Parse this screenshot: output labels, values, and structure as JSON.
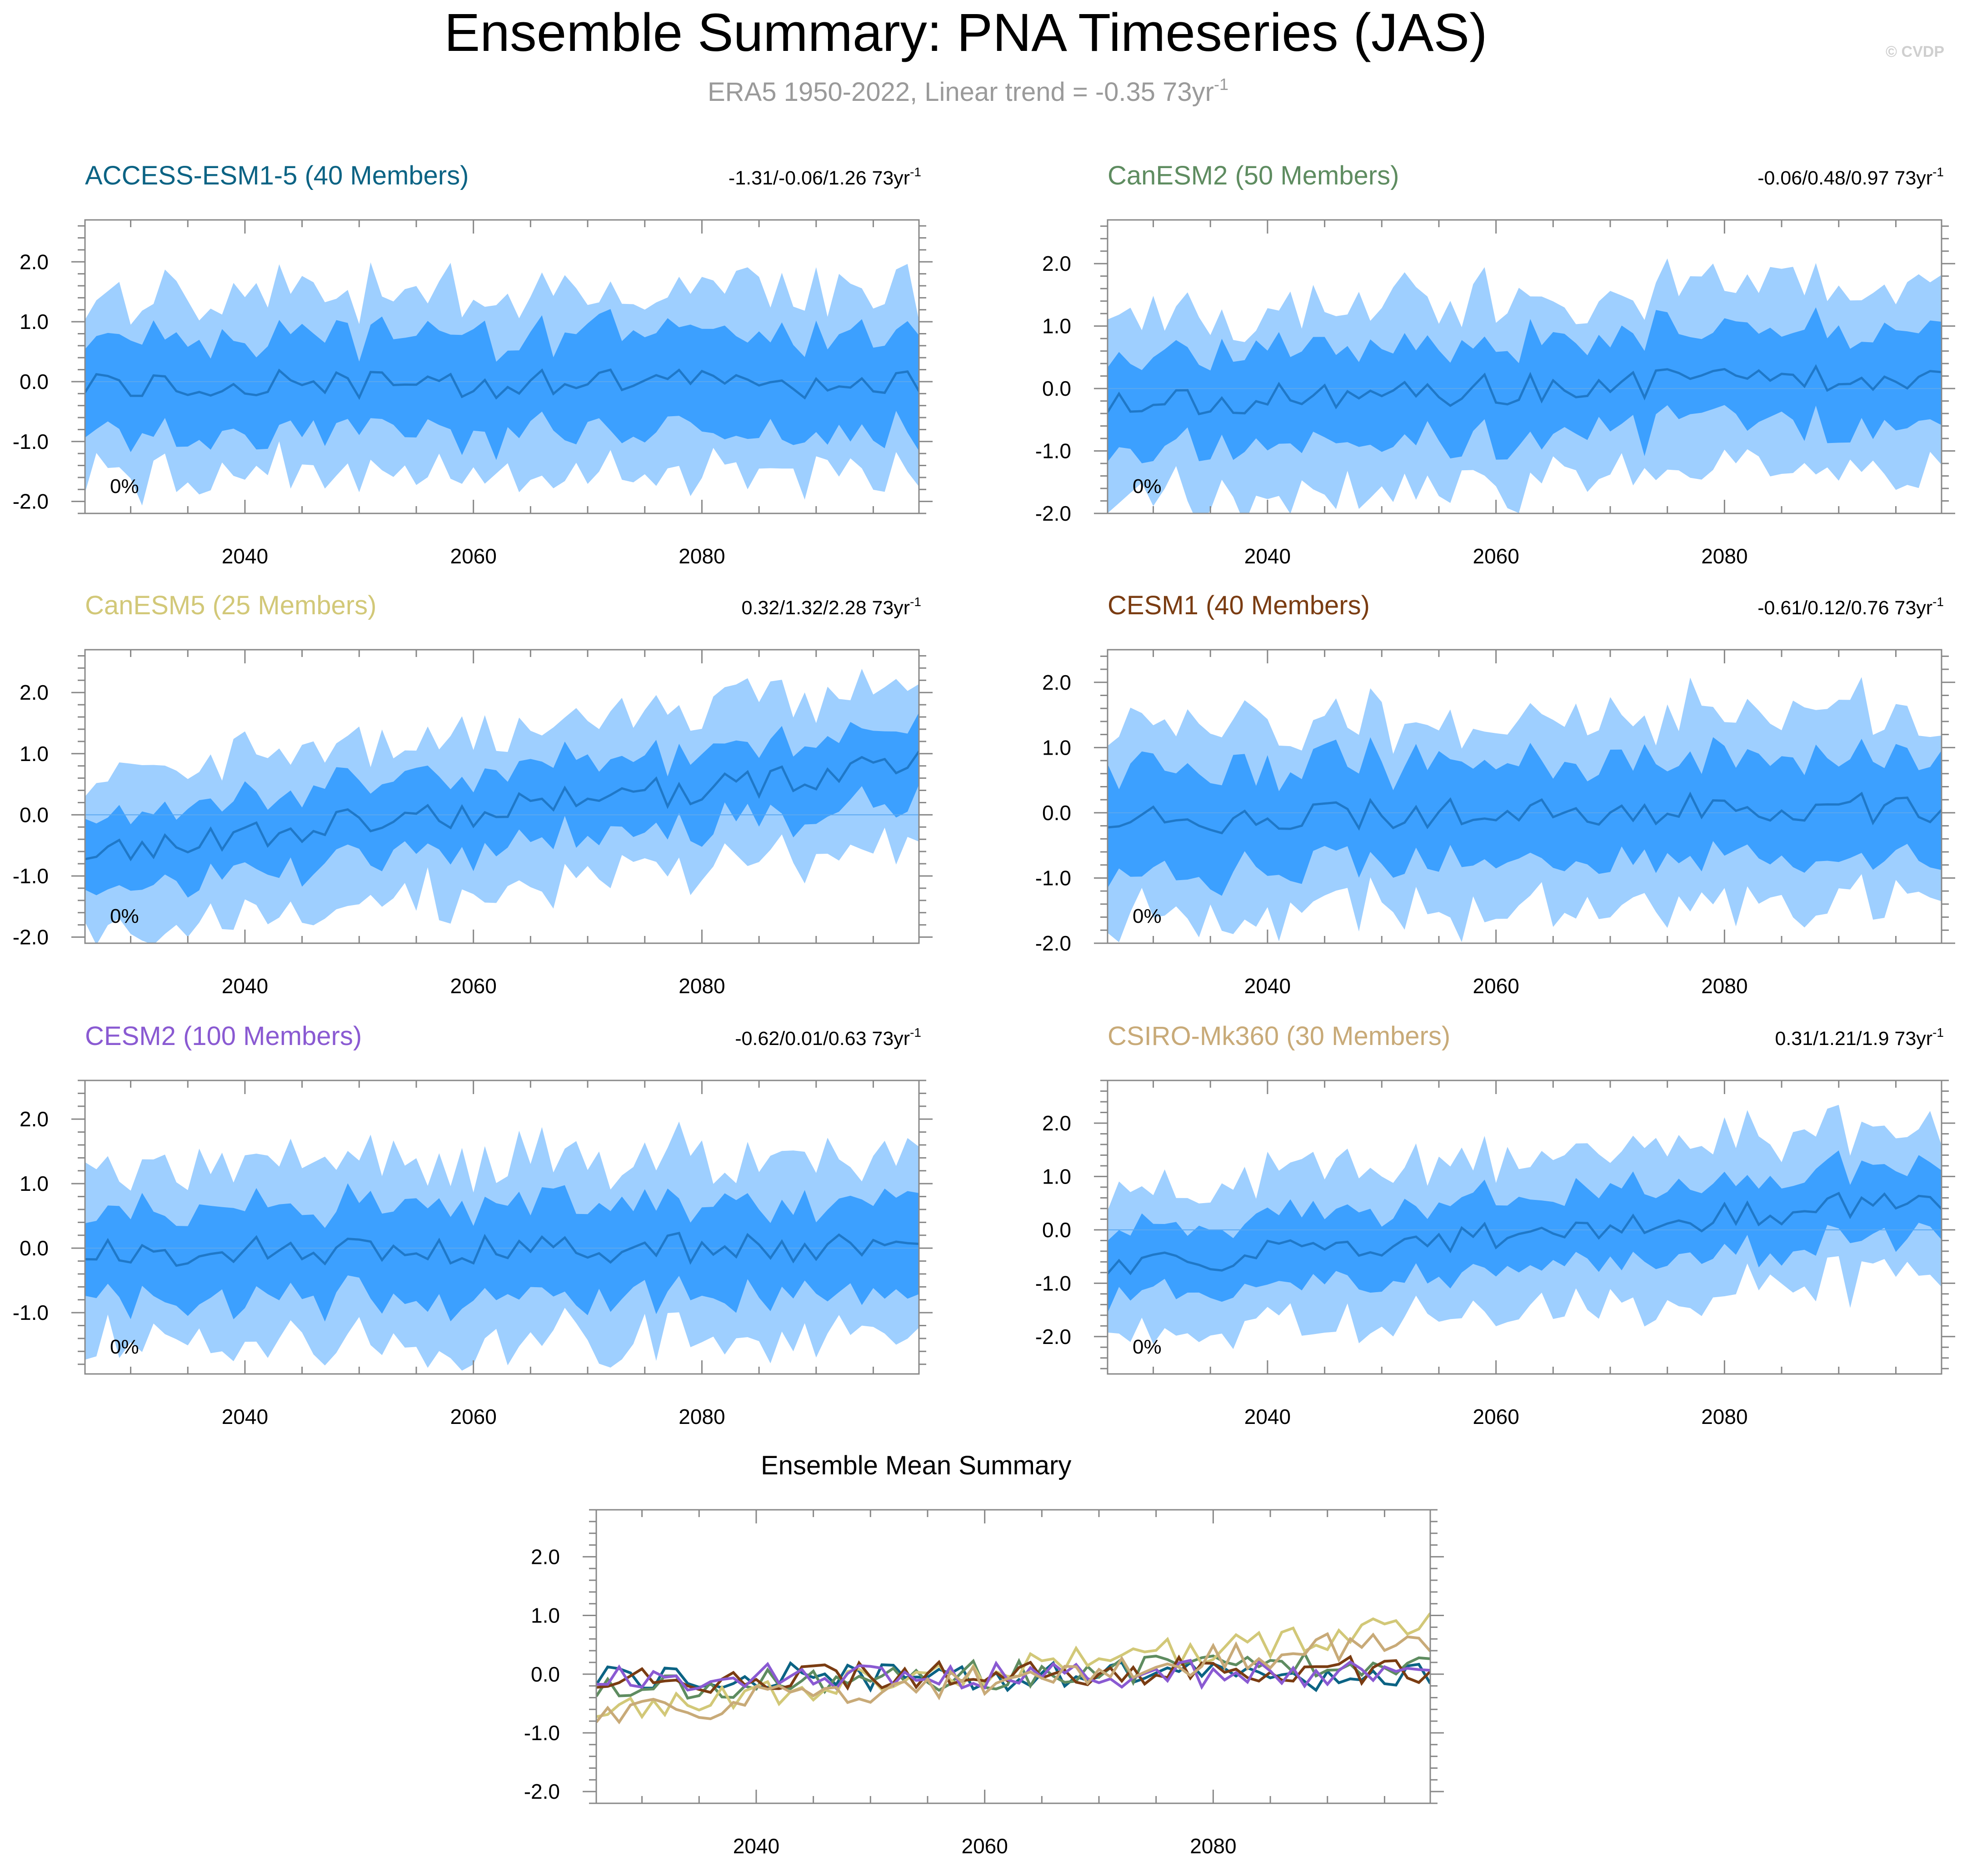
{
  "title": "Ensemble Summary: PNA Timeseries (JAS)",
  "subtitle": "ERA5 1950-2022, Linear trend = -0.35 73yr",
  "subtitle_sup": "-1",
  "watermark": "© CVDP",
  "trend_unit": " 73yr",
  "trend_sup": "-1",
  "colors": {
    "outer_band": "#9ecfff",
    "inner_band": "#3ca0ff",
    "mean_line": "#1f78c8",
    "title": "#000000",
    "subtitle": "#9a9a9a",
    "axis": "#888888"
  },
  "chart_data": [
    {
      "type": "area",
      "name": "ACCESS-ESM1-5 (40 Members)",
      "title_color": "#0b6384",
      "trend": "-1.31/-0.06/1.26",
      "pct_label": "0%",
      "xlim": [
        2026,
        2099
      ],
      "ylim": [
        -2.2,
        2.7
      ],
      "xticks": [
        2040,
        2060,
        2080
      ],
      "yticks": [
        -2.0,
        -1.0,
        0.0,
        1.0,
        2.0
      ],
      "x_start": 2026,
      "seed": 11,
      "mean_start": -0.05,
      "mean_end": -0.05,
      "inner_hw": 0.8,
      "outer_hw": 1.45
    },
    {
      "type": "area",
      "name": "CanESM2 (50 Members)",
      "title_color": "#5e8c60",
      "trend": "-0.06/0.48/0.97",
      "pct_label": "0%",
      "xlim": [
        2026,
        2099
      ],
      "ylim": [
        -2.0,
        2.7
      ],
      "xticks": [
        2040,
        2060,
        2080
      ],
      "yticks": [
        -2.0,
        -1.0,
        0.0,
        1.0,
        2.0
      ],
      "x_start": 2026,
      "seed": 23,
      "mean_start": -0.25,
      "mean_end": 0.25,
      "inner_hw": 0.75,
      "outer_hw": 1.4
    },
    {
      "type": "area",
      "name": "CanESM5 (25 Members)",
      "title_color": "#d2c878",
      "trend": "0.32/1.32/2.28",
      "pct_label": "0%",
      "xlim": [
        2026,
        2099
      ],
      "ylim": [
        -2.1,
        2.7
      ],
      "xticks": [
        2040,
        2060,
        2080
      ],
      "yticks": [
        -2.0,
        -1.0,
        0.0,
        1.0,
        2.0
      ],
      "x_start": 2026,
      "seed": 37,
      "mean_start": -0.6,
      "mean_end": 0.8,
      "inner_hw": 0.6,
      "outer_hw": 1.25
    },
    {
      "type": "area",
      "name": "CESM1 (40 Members)",
      "title_color": "#7a3c12",
      "trend": "-0.61/0.12/0.76",
      "pct_label": "0%",
      "xlim": [
        2026,
        2099
      ],
      "ylim": [
        -2.0,
        2.5
      ],
      "xticks": [
        2040,
        2060,
        2080
      ],
      "yticks": [
        -2.0,
        -1.0,
        0.0,
        1.0,
        2.0
      ],
      "x_start": 2026,
      "seed": 41,
      "mean_start": -0.1,
      "mean_end": 0.1,
      "inner_hw": 0.75,
      "outer_hw": 1.4
    },
    {
      "type": "area",
      "name": "CESM2 (100 Members)",
      "title_color": "#8a5ad2",
      "trend": "-0.62/0.01/0.63",
      "pct_label": "0%",
      "xlim": [
        2026,
        2099
      ],
      "ylim": [
        -1.95,
        2.6
      ],
      "xticks": [
        2040,
        2060,
        2080
      ],
      "yticks": [
        -1.0,
        0.0,
        1.0,
        2.0
      ],
      "x_start": 2026,
      "seed": 53,
      "mean_start": -0.05,
      "mean_end": 0.0,
      "inner_hw": 0.7,
      "outer_hw": 1.35
    },
    {
      "type": "area",
      "name": "CSIRO-Mk360 (30 Members)",
      "title_color": "#c8aa78",
      "trend": "0.31/1.21/1.9",
      "pct_label": "0%",
      "xlim": [
        2026,
        2099
      ],
      "ylim": [
        -2.7,
        2.8
      ],
      "xticks": [
        2040,
        2060,
        2080
      ],
      "yticks": [
        -2.0,
        -1.0,
        0.0,
        1.0,
        2.0
      ],
      "x_start": 2026,
      "seed": 67,
      "mean_start": -0.7,
      "mean_end": 0.6,
      "inner_hw": 0.65,
      "outer_hw": 1.35
    },
    {
      "type": "line",
      "name": "Ensemble Mean Summary",
      "title_color": "#000000",
      "xlim": [
        2026,
        2099
      ],
      "ylim": [
        -2.2,
        2.8
      ],
      "xticks": [
        2040,
        2060,
        2080
      ],
      "yticks": [
        -2.0,
        -1.0,
        0.0,
        1.0,
        2.0
      ],
      "series_from_panels": [
        0,
        1,
        2,
        3,
        4,
        5
      ]
    }
  ]
}
